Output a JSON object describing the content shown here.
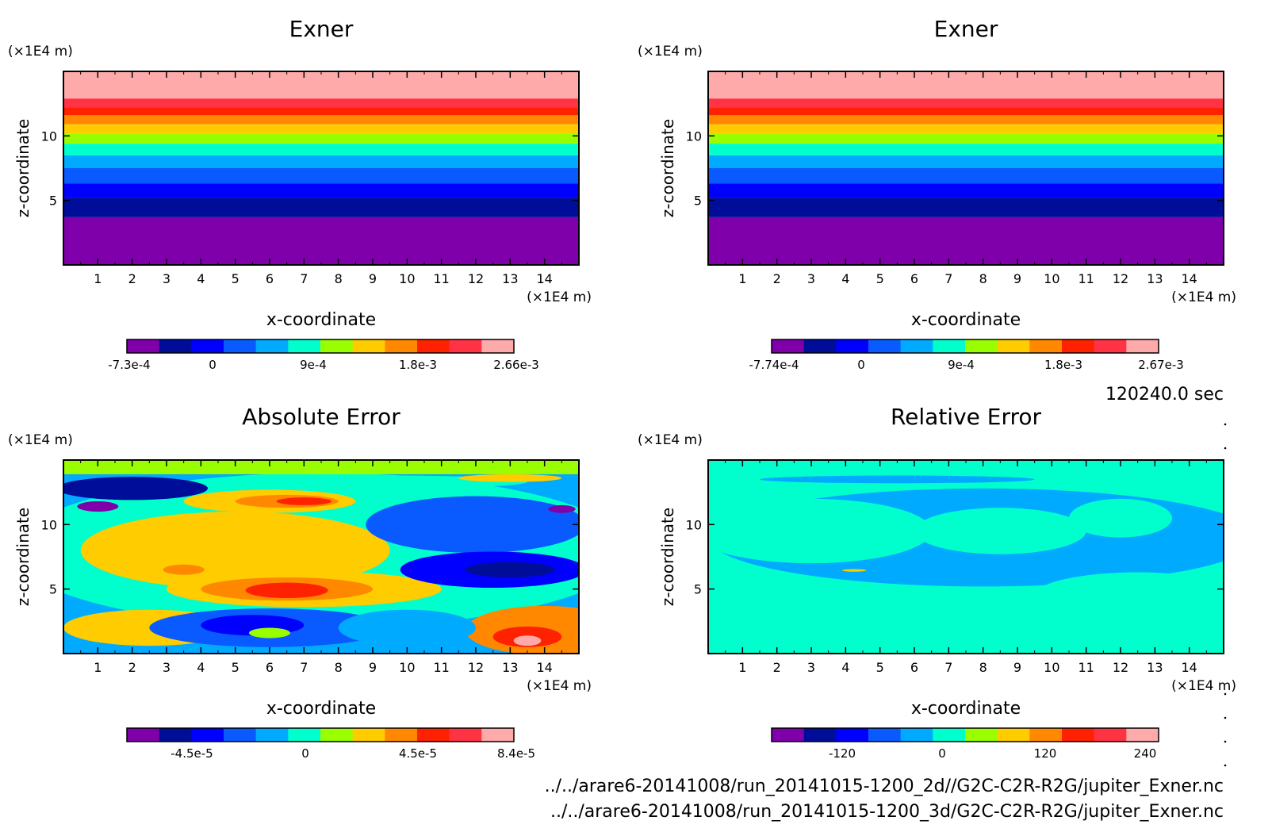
{
  "colors": {
    "bands": [
      "#7f00aa",
      "#000d99",
      "#0000ff",
      "#0a5bff",
      "#00aaff",
      "#00ffcc",
      "#99ff00",
      "#ffcc00",
      "#ff8800",
      "#ff2200",
      "#ff3344",
      "#ffaaaa"
    ]
  },
  "footer": {
    "time": "120240.0 sec",
    "path_2d": "../../arare6-20141008/run_20141015-1200_2d//G2C-C2R-R2G/jupiter_Exner.nc",
    "path_3d": "../../arare6-20141008/run_20141015-1200_3d/G2C-C2R-R2G/jupiter_Exner.nc"
  },
  "chart_data": [
    {
      "type": "heatmap",
      "title": "Exner",
      "xlabel": "x-coordinate",
      "ylabel": "z-coordinate",
      "x_unit": "(×1E4 m)",
      "y_unit": "(×1E4 m)",
      "xlim": [
        0,
        15
      ],
      "ylim": [
        0,
        15
      ],
      "x_ticks": [
        "1",
        "2",
        "3",
        "4",
        "5",
        "6",
        "7",
        "8",
        "9",
        "10",
        "11",
        "12",
        "13",
        "14"
      ],
      "y_ticks": [
        "5",
        "10"
      ],
      "z_band_edges": [
        0,
        3.7,
        5.2,
        6.3,
        7.5,
        8.5,
        9.4,
        10.2,
        10.9,
        11.6,
        12.2,
        12.9,
        15
      ],
      "colorbar_labels": [
        "-7.3e-4",
        "0",
        "9e-4",
        "1.8e-3",
        "2.66e-3"
      ]
    },
    {
      "type": "heatmap",
      "title": "Exner",
      "xlabel": "x-coordinate",
      "ylabel": "z-coordinate",
      "x_unit": "(×1E4 m)",
      "y_unit": "(×1E4 m)",
      "xlim": [
        0,
        15
      ],
      "ylim": [
        0,
        15
      ],
      "x_ticks": [
        "1",
        "2",
        "3",
        "4",
        "5",
        "6",
        "7",
        "8",
        "9",
        "10",
        "11",
        "12",
        "13",
        "14"
      ],
      "y_ticks": [
        "5",
        "10"
      ],
      "z_band_edges": [
        0,
        3.7,
        5.2,
        6.3,
        7.5,
        8.5,
        9.4,
        10.2,
        10.9,
        11.6,
        12.2,
        12.9,
        15
      ],
      "colorbar_labels": [
        "-7.74e-4",
        "0",
        "9e-4",
        "1.8e-3",
        "2.67e-3"
      ]
    },
    {
      "type": "heatmap",
      "title": "Absolute Error",
      "xlabel": "x-coordinate",
      "ylabel": "z-coordinate",
      "x_unit": "(×1E4 m)",
      "y_unit": "(×1E4 m)",
      "xlim": [
        0,
        15
      ],
      "ylim": [
        0,
        15
      ],
      "x_ticks": [
        "1",
        "2",
        "3",
        "4",
        "5",
        "6",
        "7",
        "8",
        "9",
        "10",
        "11",
        "12",
        "13",
        "14"
      ],
      "y_ticks": [
        "5",
        "10"
      ],
      "colorbar_labels": [
        "-4.5e-5",
        "0",
        "4.5e-5",
        "8.4e-5"
      ],
      "regions": [
        {
          "x": 7.5,
          "z": 8.0,
          "rx": 9,
          "rz": 6,
          "level": 5
        },
        {
          "x": 5.0,
          "z": 8.0,
          "rx": 4.5,
          "rz": 3.0,
          "level": 7
        },
        {
          "x": 6.0,
          "z": 11.8,
          "rx": 2.5,
          "rz": 0.9,
          "level": 7
        },
        {
          "x": 6.5,
          "z": 11.8,
          "rx": 1.5,
          "rz": 0.5,
          "level": 8
        },
        {
          "x": 7.0,
          "z": 11.8,
          "rx": 0.8,
          "rz": 0.3,
          "level": 9
        },
        {
          "x": 7.0,
          "z": 5.0,
          "rx": 4.0,
          "rz": 1.4,
          "level": 7
        },
        {
          "x": 6.5,
          "z": 5.0,
          "rx": 2.5,
          "rz": 0.9,
          "level": 8
        },
        {
          "x": 6.5,
          "z": 4.9,
          "rx": 1.2,
          "rz": 0.6,
          "level": 9
        },
        {
          "x": 3.5,
          "z": 6.5,
          "rx": 0.6,
          "rz": 0.4,
          "level": 8
        },
        {
          "x": 12.0,
          "z": 10.0,
          "rx": 3.2,
          "rz": 2.2,
          "level": 3
        },
        {
          "x": 12.5,
          "z": 6.5,
          "rx": 2.7,
          "rz": 1.4,
          "level": 2
        },
        {
          "x": 13.0,
          "z": 6.5,
          "rx": 1.3,
          "rz": 0.6,
          "level": 1
        },
        {
          "x": 2.0,
          "z": 12.8,
          "rx": 2.2,
          "rz": 0.9,
          "level": 1
        },
        {
          "x": 1.0,
          "z": 11.4,
          "rx": 0.6,
          "rz": 0.4,
          "level": 0
        },
        {
          "x": 14.5,
          "z": 11.2,
          "rx": 0.4,
          "rz": 0.3,
          "level": 0
        },
        {
          "x": 14.0,
          "z": 1.8,
          "rx": 2.3,
          "rz": 1.9,
          "level": 8
        },
        {
          "x": 13.5,
          "z": 1.3,
          "rx": 1.0,
          "rz": 0.8,
          "level": 9
        },
        {
          "x": 13.5,
          "z": 1.0,
          "rx": 0.4,
          "rz": 0.4,
          "level": 11
        },
        {
          "x": 2.5,
          "z": 2.0,
          "rx": 2.5,
          "rz": 1.4,
          "level": 7
        },
        {
          "x": 6.0,
          "z": 2.0,
          "rx": 3.5,
          "rz": 1.5,
          "level": 3
        },
        {
          "x": 5.5,
          "z": 2.2,
          "rx": 1.5,
          "rz": 0.8,
          "level": 2
        },
        {
          "x": 6.0,
          "z": 1.6,
          "rx": 0.6,
          "rz": 0.4,
          "level": 6
        },
        {
          "x": 10.0,
          "z": 2.0,
          "rx": 2.0,
          "rz": 1.4,
          "level": 4
        },
        {
          "x": 9.5,
          "z": 13.3,
          "rx": 4.0,
          "rz": 0.5,
          "level": 5
        },
        {
          "x": 13.0,
          "z": 13.6,
          "rx": 1.5,
          "rz": 0.3,
          "level": 7
        }
      ]
    },
    {
      "type": "heatmap",
      "title": "Relative Error",
      "xlabel": "x-coordinate",
      "ylabel": "z-coordinate",
      "x_unit": "(×1E4 m)",
      "y_unit": "(×1E4 m)",
      "xlim": [
        0,
        15
      ],
      "ylim": [
        0,
        15
      ],
      "x_ticks": [
        "1",
        "2",
        "3",
        "4",
        "5",
        "6",
        "7",
        "8",
        "9",
        "10",
        "11",
        "12",
        "13",
        "14"
      ],
      "y_ticks": [
        "5",
        "10"
      ],
      "colorbar_labels": [
        "-120",
        "0",
        "120",
        "240"
      ],
      "regions": [
        {
          "x": 8.0,
          "z": 9.0,
          "rx": 8.0,
          "rz": 3.8,
          "level": 4
        },
        {
          "x": 3.0,
          "z": 9.5,
          "rx": 3.5,
          "rz": 2.5,
          "level": 5
        },
        {
          "x": 8.5,
          "z": 9.5,
          "rx": 2.5,
          "rz": 1.8,
          "level": 5
        },
        {
          "x": 12.0,
          "z": 10.5,
          "rx": 1.5,
          "rz": 1.5,
          "level": 5
        },
        {
          "x": 12.5,
          "z": 4.5,
          "rx": 3.0,
          "rz": 1.8,
          "level": 5
        },
        {
          "x": 1.5,
          "z": 4.0,
          "rx": 1.8,
          "rz": 1.4,
          "level": 5
        },
        {
          "x": 7.0,
          "z": 2.0,
          "rx": 5.0,
          "rz": 1.0,
          "level": 5
        },
        {
          "x": 5.5,
          "z": 13.5,
          "rx": 4.0,
          "rz": 0.3,
          "level": 4
        },
        {
          "x": 5.8,
          "z": 6.4,
          "rx": 2.0,
          "rz": 0.2,
          "level": 4
        },
        {
          "x": 4.25,
          "z": 6.45,
          "rx": 0.35,
          "rz": 0.1,
          "level": 7
        }
      ]
    }
  ]
}
